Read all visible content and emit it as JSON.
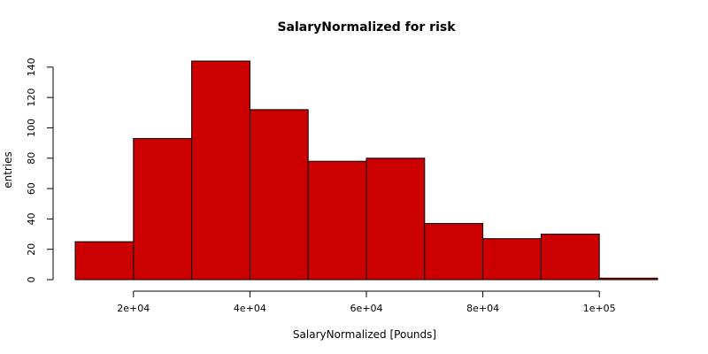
{
  "chart_data": {
    "type": "bar",
    "title": "SalaryNormalized for risk",
    "xlabel": "SalaryNormalized [Pounds]",
    "ylabel": "entries",
    "bins": [
      {
        "x0": 10000,
        "x1": 20000,
        "count": 25
      },
      {
        "x0": 20000,
        "x1": 30000,
        "count": 93
      },
      {
        "x0": 30000,
        "x1": 40000,
        "count": 144
      },
      {
        "x0": 40000,
        "x1": 50000,
        "count": 112
      },
      {
        "x0": 50000,
        "x1": 60000,
        "count": 78
      },
      {
        "x0": 60000,
        "x1": 70000,
        "count": 80
      },
      {
        "x0": 70000,
        "x1": 80000,
        "count": 37
      },
      {
        "x0": 80000,
        "x1": 90000,
        "count": 27
      },
      {
        "x0": 90000,
        "x1": 100000,
        "count": 30
      },
      {
        "x0": 100000,
        "x1": 110000,
        "count": 1
      }
    ],
    "xlim": [
      10000,
      110000
    ],
    "ylim": [
      0,
      144
    ],
    "xticks": [
      {
        "value": 20000,
        "label": "2e+04"
      },
      {
        "value": 40000,
        "label": "4e+04"
      },
      {
        "value": 60000,
        "label": "6e+04"
      },
      {
        "value": 80000,
        "label": "8e+04"
      },
      {
        "value": 100000,
        "label": "1e+05"
      }
    ],
    "yticks": [
      {
        "value": 0,
        "label": "0"
      },
      {
        "value": 20,
        "label": "20"
      },
      {
        "value": 40,
        "label": "40"
      },
      {
        "value": 60,
        "label": "60"
      },
      {
        "value": 80,
        "label": "80"
      },
      {
        "value": 100,
        "label": "100"
      },
      {
        "value": 120,
        "label": "120"
      },
      {
        "value": 140,
        "label": "140"
      }
    ],
    "bar_color": "#cc0000",
    "grid": false,
    "legend": "none"
  }
}
